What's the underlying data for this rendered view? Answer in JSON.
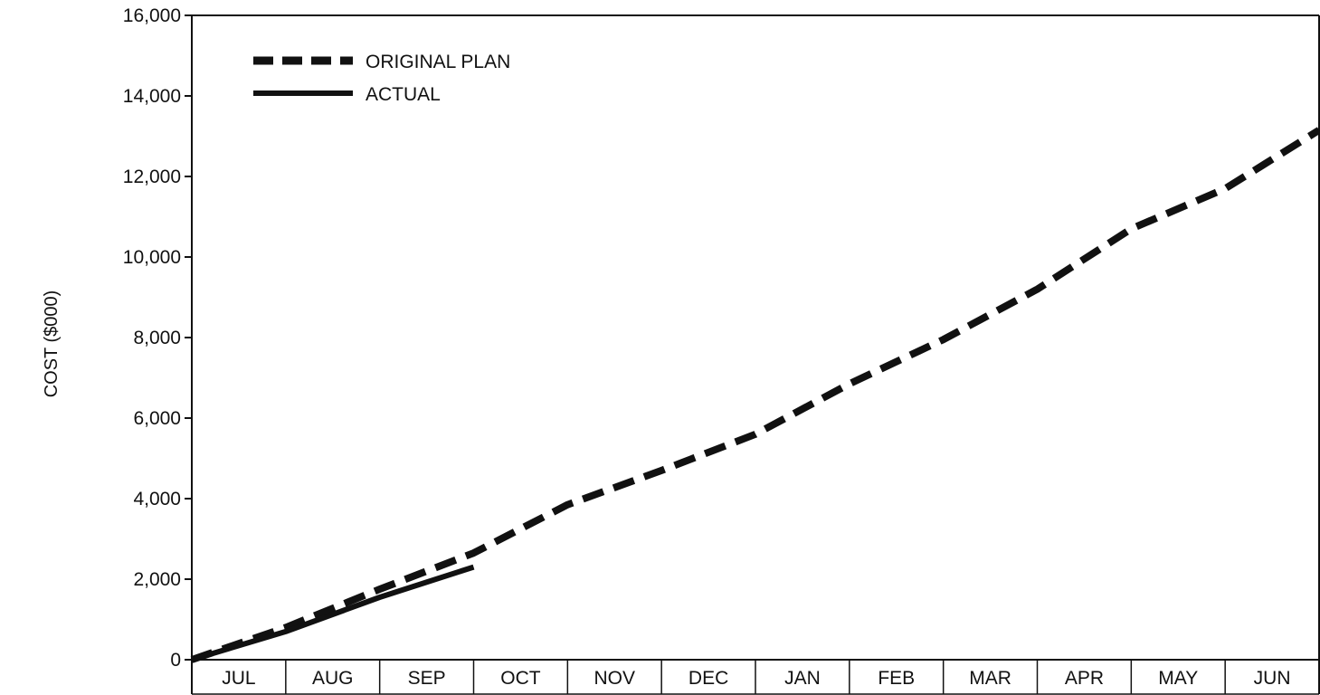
{
  "chart_data": {
    "type": "line",
    "title": "",
    "xlabel": "",
    "ylabel": "COST ($000)",
    "categories": [
      "JUL",
      "AUG",
      "SEP",
      "OCT",
      "NOV",
      "DEC",
      "JAN",
      "FEB",
      "MAR",
      "APR",
      "MAY",
      "JUN"
    ],
    "ylim": [
      0,
      16000
    ],
    "y_ticks": [
      0,
      2000,
      4000,
      6000,
      8000,
      10000,
      12000,
      14000,
      16000
    ],
    "y_tick_labels": [
      "0",
      "2,000",
      "4,000",
      "6,000",
      "8,000",
      "10,000",
      "12,000",
      "14,000",
      "16,000"
    ],
    "x_unit": "month",
    "grid": false,
    "legend_position": "top-left",
    "series": [
      {
        "name": "ORIGINAL PLAN",
        "style": "dashed",
        "color": "#111111",
        "points": [
          {
            "x": 0,
            "y": 0
          },
          {
            "x": 1,
            "y": 800
          },
          {
            "x": 2,
            "y": 1750
          },
          {
            "x": 3,
            "y": 2650
          },
          {
            "x": 4,
            "y": 3850
          },
          {
            "x": 5,
            "y": 4700
          },
          {
            "x": 6,
            "y": 5600
          },
          {
            "x": 7,
            "y": 6850
          },
          {
            "x": 8,
            "y": 7950
          },
          {
            "x": 9,
            "y": 9200
          },
          {
            "x": 10,
            "y": 10700
          },
          {
            "x": 11,
            "y": 11700
          },
          {
            "x": 12,
            "y": 13150
          }
        ]
      },
      {
        "name": "ACTUAL",
        "style": "solid",
        "color": "#111111",
        "points": [
          {
            "x": 0,
            "y": 0
          },
          {
            "x": 1,
            "y": 700
          },
          {
            "x": 2,
            "y": 1550
          },
          {
            "x": 3,
            "y": 2300
          }
        ]
      }
    ]
  }
}
